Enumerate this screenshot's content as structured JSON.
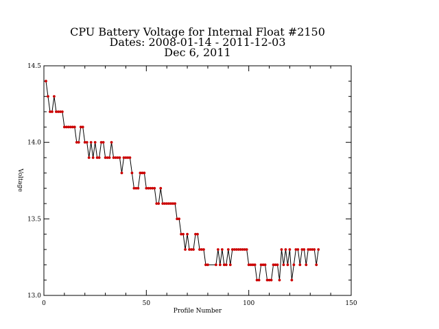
{
  "chart_data": {
    "type": "line",
    "title": "CPU Battery Voltage for Internal Float #2150",
    "subtitle_dates": "Dates:  2008-01-14 -  2011-12-03",
    "subtitle_date": "Dec  6, 2011",
    "xlabel": "Profile Number",
    "ylabel": "Voltage",
    "xlim": [
      0,
      150
    ],
    "ylim": [
      13.0,
      14.5
    ],
    "x_ticks": [
      "0",
      "50",
      "100",
      "150"
    ],
    "y_ticks": [
      "13.0",
      "13.5",
      "14.0",
      "14.5"
    ],
    "grid": false,
    "line_color": "#000000",
    "marker_color": "#cc0000",
    "series": [
      {
        "x": [
          1,
          2,
          3,
          4,
          5,
          6,
          7,
          8,
          9,
          10,
          11,
          12,
          13,
          14,
          15,
          16,
          17,
          18,
          19,
          20,
          21,
          22,
          23,
          24,
          25,
          26,
          27,
          28,
          29,
          30,
          31,
          32,
          33,
          34,
          35,
          36,
          37,
          38,
          39,
          40,
          41,
          42,
          43,
          44,
          45,
          46,
          47,
          48,
          49,
          50,
          51,
          52,
          53,
          54,
          55,
          56,
          57,
          58,
          59,
          60,
          61,
          62,
          63,
          64,
          65,
          66,
          67,
          68,
          69,
          70,
          71,
          72,
          73,
          74,
          75,
          76,
          77,
          78,
          79,
          80,
          84,
          85,
          86,
          87,
          88,
          89,
          90,
          91,
          92,
          93,
          94,
          95,
          96,
          97,
          98,
          99,
          100,
          101,
          102,
          103,
          104,
          105,
          106,
          107,
          108,
          109,
          110,
          111,
          112,
          113,
          114,
          115,
          116,
          117,
          118,
          119,
          120,
          121,
          122,
          123,
          124,
          125,
          126,
          127,
          128,
          129,
          130,
          131,
          132,
          133,
          134
        ],
        "y": [
          14.4,
          14.3,
          14.2,
          14.2,
          14.3,
          14.2,
          14.2,
          14.2,
          14.2,
          14.1,
          14.1,
          14.1,
          14.1,
          14.1,
          14.1,
          14.0,
          14.0,
          14.1,
          14.1,
          14.0,
          14.0,
          13.9,
          14.0,
          13.9,
          14.0,
          13.9,
          13.9,
          14.0,
          14.0,
          13.9,
          13.9,
          13.9,
          14.0,
          13.9,
          13.9,
          13.9,
          13.9,
          13.8,
          13.9,
          13.9,
          13.9,
          13.9,
          13.8,
          13.7,
          13.7,
          13.7,
          13.8,
          13.8,
          13.8,
          13.7,
          13.7,
          13.7,
          13.7,
          13.7,
          13.6,
          13.6,
          13.7,
          13.6,
          13.6,
          13.6,
          13.6,
          13.6,
          13.6,
          13.6,
          13.5,
          13.5,
          13.4,
          13.4,
          13.3,
          13.4,
          13.3,
          13.3,
          13.3,
          13.4,
          13.4,
          13.3,
          13.3,
          13.3,
          13.2,
          13.2,
          13.2,
          13.3,
          13.2,
          13.3,
          13.2,
          13.2,
          13.3,
          13.2,
          13.3,
          13.3,
          13.3,
          13.3,
          13.3,
          13.3,
          13.3,
          13.3,
          13.2,
          13.2,
          13.2,
          13.2,
          13.1,
          13.1,
          13.2,
          13.2,
          13.2,
          13.1,
          13.1,
          13.1,
          13.2,
          13.2,
          13.2,
          13.1,
          13.3,
          13.2,
          13.3,
          13.2,
          13.3,
          13.1,
          13.2,
          13.3,
          13.3,
          13.2,
          13.3,
          13.3,
          13.2,
          13.3,
          13.3,
          13.3,
          13.3,
          13.2,
          13.3
        ]
      }
    ]
  }
}
